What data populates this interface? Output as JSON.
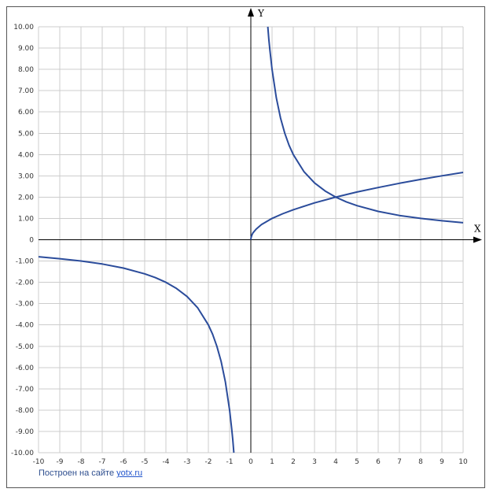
{
  "chart_data": {
    "type": "line",
    "xlim": [
      -10,
      10
    ],
    "ylim": [
      -10,
      10
    ],
    "grid": true,
    "x_axis_name": "X",
    "y_axis_name": "Y",
    "x_ticks": [
      -10,
      -9,
      -8,
      -7,
      -6,
      -5,
      -4,
      -3,
      -2,
      -1,
      0,
      1,
      2,
      3,
      4,
      5,
      6,
      7,
      8,
      9,
      10
    ],
    "x_tick_labels": [
      "-10",
      "-9",
      "-8",
      "-7",
      "-6",
      "-5",
      "-4",
      "-3",
      "-2",
      "-1",
      "0",
      "1",
      "2",
      "3",
      "4",
      "5",
      "6",
      "7",
      "8",
      "9",
      "10"
    ],
    "y_ticks": [
      10,
      9,
      8,
      7,
      6,
      5,
      4,
      3,
      2,
      1,
      0,
      -1,
      -2,
      -3,
      -4,
      -5,
      -6,
      -7,
      -8,
      -9,
      -10
    ],
    "y_tick_labels": [
      "10.00",
      "9.00",
      "8.00",
      "7.00",
      "6.00",
      "5.00",
      "4.00",
      "3.00",
      "2.00",
      "1.00",
      "0",
      "-1.00",
      "-2.00",
      "-3.00",
      "-4.00",
      "-5.00",
      "-6.00",
      "-7.00",
      "-8.00",
      "-9.00",
      "-10.00"
    ],
    "series": [
      {
        "color": "#2b4c9b",
        "x": [
          0.8,
          0.85,
          0.9,
          1,
          1.2,
          1.4,
          1.6,
          1.8,
          2,
          2.5,
          3,
          3.5,
          4,
          4.5,
          5,
          6,
          7,
          8,
          9,
          10
        ],
        "y": [
          10,
          9.41,
          8.89,
          8,
          6.67,
          5.71,
          5,
          4.44,
          4,
          3.2,
          2.67,
          2.29,
          2,
          1.78,
          1.6,
          1.33,
          1.14,
          1,
          0.89,
          0.8
        ]
      },
      {
        "color": "#2b4c9b",
        "x": [
          -10,
          -9,
          -8,
          -7,
          -6,
          -5,
          -4.5,
          -4,
          -3.5,
          -3,
          -2.5,
          -2,
          -1.8,
          -1.6,
          -1.4,
          -1.2,
          -1,
          -0.9,
          -0.85,
          -0.8
        ],
        "y": [
          -0.8,
          -0.89,
          -1,
          -1.14,
          -1.33,
          -1.6,
          -1.78,
          -2,
          -2.29,
          -2.67,
          -3.2,
          -4,
          -4.44,
          -5,
          -5.71,
          -6.67,
          -8,
          -8.89,
          -9.41,
          -10
        ]
      },
      {
        "color": "#2b4c9b",
        "x": [
          0,
          0.01,
          0.05,
          0.1,
          0.25,
          0.5,
          1,
          1.5,
          2,
          3,
          4,
          5,
          6,
          7,
          8,
          9,
          10
        ],
        "y": [
          0,
          0.1,
          0.22,
          0.32,
          0.5,
          0.71,
          1,
          1.22,
          1.41,
          1.73,
          2,
          2.24,
          2.45,
          2.65,
          2.83,
          3,
          3.16
        ]
      }
    ]
  },
  "footer": {
    "credit_prefix": "Построен на сайте ",
    "credit_link": "yotx.ru"
  }
}
